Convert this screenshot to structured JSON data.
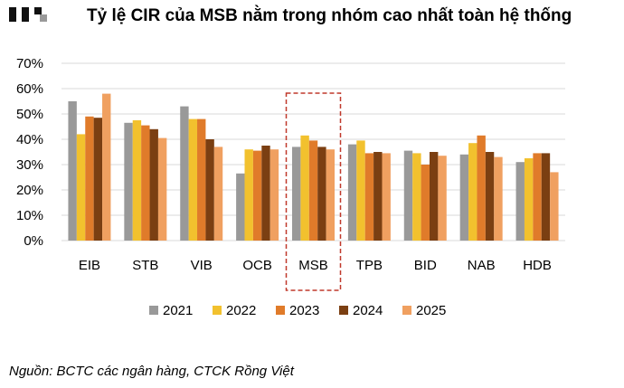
{
  "title": "Tỷ lệ CIR của MSB nằm trong nhóm cao nhất toàn hệ thống",
  "source": "Nguồn: BCTC các ngân hàng, CTCK Rồng Việt",
  "colors": {
    "2021": "#999999",
    "2022": "#f2c12e",
    "2023": "#e07b2a",
    "2024": "#7b3f12",
    "2025": "#f0a060",
    "highlight_box": "#c0392b",
    "gridline": "#d9d9d9"
  },
  "chart_data": {
    "type": "bar",
    "categories": [
      "EIB",
      "STB",
      "VIB",
      "OCB",
      "MSB",
      "TPB",
      "BID",
      "NAB",
      "HDB"
    ],
    "series": [
      {
        "name": "2021",
        "values": [
          55,
          46.5,
          53,
          26.5,
          37,
          38,
          35.5,
          34,
          31
        ]
      },
      {
        "name": "2022",
        "values": [
          42,
          47.5,
          48,
          36,
          41.5,
          39.5,
          34.5,
          38.5,
          32.5
        ]
      },
      {
        "name": "2023",
        "values": [
          49,
          45.5,
          48,
          35.5,
          39.5,
          34.5,
          30,
          41.5,
          34.5
        ]
      },
      {
        "name": "2024",
        "values": [
          48.5,
          44,
          40,
          37.5,
          37,
          35,
          35,
          35,
          34.5
        ]
      },
      {
        "name": "2025",
        "values": [
          58,
          40.5,
          37,
          36,
          36,
          34.5,
          33.5,
          33,
          27
        ]
      }
    ],
    "y_ticks": [
      "0%",
      "10%",
      "20%",
      "30%",
      "40%",
      "50%",
      "60%",
      "70%"
    ],
    "ylim": [
      0,
      70
    ],
    "grid": true,
    "legend_position": "bottom",
    "highlight_category": "MSB"
  }
}
